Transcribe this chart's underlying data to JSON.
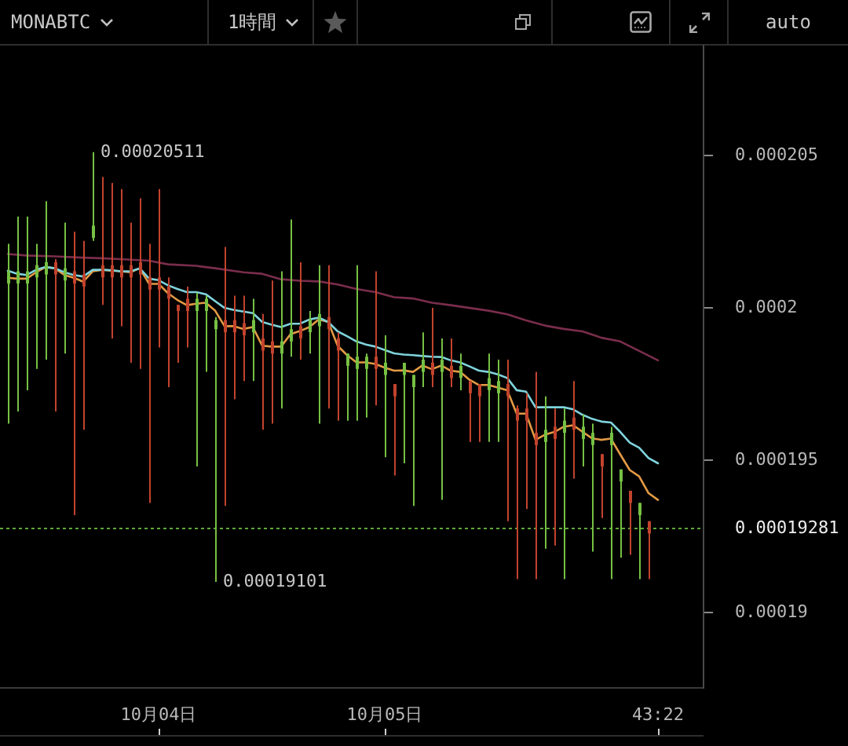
{
  "chart_data": {
    "type": "candlestick",
    "title": "MONABTC",
    "x": [
      "--10-03T08:00",
      "--10-03T09:00",
      "--10-03T10:00",
      "--10-03T11:00",
      "--10-03T12:00",
      "--10-03T13:00",
      "--10-03T14:00",
      "--10-03T15:00",
      "--10-03T16:00",
      "--10-03T17:00",
      "--10-03T18:00",
      "--10-03T19:00",
      "--10-03T20:00",
      "--10-03T21:00",
      "--10-03T22:00",
      "--10-03T23:00",
      "--10-04T00:00",
      "--10-04T01:00",
      "--10-04T02:00",
      "--10-04T03:00",
      "--10-04T04:00",
      "--10-04T05:00",
      "--10-04T06:00",
      "--10-04T07:00",
      "--10-04T08:00",
      "--10-04T09:00",
      "--10-04T10:00",
      "--10-04T11:00",
      "--10-04T12:00",
      "--10-04T13:00",
      "--10-04T14:00",
      "--10-04T15:00",
      "--10-04T16:00",
      "--10-04T17:00",
      "--10-04T18:00",
      "--10-04T19:00",
      "--10-04T20:00",
      "--10-04T21:00",
      "--10-04T22:00",
      "--10-04T23:00",
      "--10-05T00:00",
      "--10-05T01:00",
      "--10-05T02:00",
      "--10-05T03:00",
      "--10-05T04:00",
      "--10-05T05:00",
      "--10-05T06:00",
      "--10-05T07:00",
      "--10-05T08:00",
      "--10-05T09:00",
      "--10-05T10:00",
      "--10-05T11:00",
      "--10-05T12:00",
      "--10-05T13:00",
      "--10-05T14:00",
      "--10-05T15:00",
      "--10-05T16:00",
      "--10-05T17:00",
      "--10-05T18:00",
      "--10-05T19:00",
      "--10-05T20:00",
      "--10-05T21:00",
      "--10-05T22:00",
      "--10-05T23:00",
      "--10-06T00:00",
      "--10-06T01:00",
      "--10-06T02:00",
      "--10-06T03:00",
      "--10-06T04:00",
      "--10-06T05:00"
    ],
    "ohlc": [
      [
        0.0002008,
        0.0002021,
        0.0001962,
        0.0002012
      ],
      [
        0.0002008,
        0.000203,
        0.0001966,
        0.0002012
      ],
      [
        0.0002008,
        0.000203,
        0.0001973,
        0.0002012
      ],
      [
        0.000201,
        0.0002021,
        0.000198,
        0.0002014
      ],
      [
        0.0002011,
        0.0002035,
        0.0001983,
        0.0002015
      ],
      [
        0.0002015,
        0.0002016,
        0.0001966,
        0.0002011
      ],
      [
        0.0002009,
        0.0002028,
        0.0001985,
        0.0002013
      ],
      [
        0.0002012,
        0.0002025,
        0.0001932,
        0.0002008
      ],
      [
        0.0002011,
        0.0002022,
        0.000196,
        0.0002007
      ],
      [
        0.0002023,
        0.00020511,
        0.0002022,
        0.0002027
      ],
      [
        0.0002014,
        0.0002043,
        0.0002001,
        0.000201
      ],
      [
        0.0002014,
        0.0002041,
        0.000199,
        0.000201
      ],
      [
        0.0002014,
        0.0002039,
        0.0001994,
        0.000201
      ],
      [
        0.0002014,
        0.0002028,
        0.0001982,
        0.000201
      ],
      [
        0.0002015,
        0.0002036,
        0.000198,
        0.0002011
      ],
      [
        0.000201,
        0.0002021,
        0.0001936,
        0.0002006
      ],
      [
        0.000201,
        0.0002039,
        0.0001987,
        0.0002006
      ],
      [
        0.0002007,
        0.000201,
        0.0001974,
        0.0002003
      ],
      [
        0.0002001,
        0.0002001,
        0.0001982,
        0.0001999
      ],
      [
        0.0002003,
        0.0002007,
        0.0001987,
        0.0001999
      ],
      [
        0.0001999,
        0.0002005,
        0.0001948,
        0.0002003
      ],
      [
        0.0001999,
        0.0002004,
        0.0001979,
        0.0002003
      ],
      [
        0.0001993,
        0.0001997,
        0.00019101,
        0.0001996
      ],
      [
        0.0001996,
        0.000202,
        0.0001935,
        0.0001992
      ],
      [
        0.0001996,
        0.0002004,
        0.000197,
        0.0001992
      ],
      [
        0.0001995,
        0.0002004,
        0.0001976,
        0.0001991
      ],
      [
        0.0001992,
        0.0002003,
        0.0001976,
        0.0001996
      ],
      [
        0.000199,
        0.0001998,
        0.000196,
        0.0001986
      ],
      [
        0.0001989,
        0.0002009,
        0.0001962,
        0.0001985
      ],
      [
        0.0001985,
        0.0002012,
        0.0001967,
        0.0001989
      ],
      [
        0.0001989,
        0.0002029,
        0.0001984,
        0.0001993
      ],
      [
        0.0001994,
        0.0002015,
        0.0001983,
        0.000199
      ],
      [
        0.0001992,
        0.0001999,
        0.0001985,
        0.0001996
      ],
      [
        0.0001994,
        0.0002014,
        0.0001962,
        0.0001998
      ],
      [
        0.0001997,
        0.0002014,
        0.0001967,
        0.0001993
      ],
      [
        0.000199,
        0.0001992,
        0.0001963,
        0.0001986
      ],
      [
        0.0001981,
        0.0001985,
        0.0001963,
        0.0001985
      ],
      [
        0.000198,
        0.0002014,
        0.0001963,
        0.0001984
      ],
      [
        0.000198,
        0.0001985,
        0.0001964,
        0.0001984
      ],
      [
        0.0001984,
        0.0002012,
        0.0001968,
        0.000198
      ],
      [
        0.0001978,
        0.0001991,
        0.0001951,
        0.0001982
      ],
      [
        0.0001975,
        0.0001975,
        0.0001945,
        0.0001971
      ],
      [
        0.0001978,
        0.0001982,
        0.0001949,
        0.0001982
      ],
      [
        0.0001974,
        0.0001978,
        0.0001935,
        0.0001978
      ],
      [
        0.0001979,
        0.0001992,
        0.0001974,
        0.0001983
      ],
      [
        0.0001982,
        0.0002,
        0.0001974,
        0.0001978
      ],
      [
        0.0001979,
        0.000199,
        0.0001937,
        0.0001983
      ],
      [
        0.0001981,
        0.000199,
        0.0001974,
        0.0001977
      ],
      [
        0.0001977,
        0.0001985,
        0.0001973,
        0.0001981
      ],
      [
        0.0001976,
        0.0001976,
        0.0001956,
        0.0001972
      ],
      [
        0.0001975,
        0.0001975,
        0.0001956,
        0.0001971
      ],
      [
        0.0001973,
        0.0001985,
        0.0001956,
        0.0001977
      ],
      [
        0.0001972,
        0.0001983,
        0.0001956,
        0.0001976
      ],
      [
        0.0001975,
        0.0001983,
        0.000193,
        0.0001971
      ],
      [
        0.0001967,
        0.0001968,
        0.0001911,
        0.0001963
      ],
      [
        0.0001967,
        0.0001972,
        0.0001934,
        0.0001963
      ],
      [
        0.0001959,
        0.0001979,
        0.0001911,
        0.0001955
      ],
      [
        0.0001956,
        0.0001971,
        0.0001921,
        0.000196
      ],
      [
        0.0001961,
        0.0001967,
        0.0001922,
        0.0001957
      ],
      [
        0.0001959,
        0.0001967,
        0.0001911,
        0.0001963
      ],
      [
        0.0001964,
        0.0001976,
        0.0001944,
        0.000196
      ],
      [
        0.0001957,
        0.0001965,
        0.0001948,
        0.0001961
      ],
      [
        0.0001955,
        0.0001962,
        0.000192,
        0.0001959
      ],
      [
        0.0001952,
        0.0001952,
        0.0001931,
        0.0001948
      ],
      [
        0.0001955,
        0.0001961,
        0.0001911,
        0.0001959
      ],
      [
        0.0001943,
        0.0001947,
        0.0001918,
        0.0001947
      ],
      [
        0.000194,
        0.000194,
        0.0001919,
        0.0001936
      ],
      [
        0.0001932,
        0.0001936,
        0.0001911,
        0.0001936
      ],
      [
        0.000193,
        0.000193,
        0.0001911,
        0.0001926
      ],
      null
    ],
    "colors": [
      "#76c043",
      "#76c043",
      "#76c043",
      "#76c043",
      "#76c043",
      "#c2432d",
      "#76c043",
      "#c2432d",
      "#c2432d",
      "#76c043",
      "#c2432d",
      "#c2432d",
      "#c2432d",
      "#c2432d",
      "#c2432d",
      "#c2432d",
      "#c2432d",
      "#c2432d",
      "#c2432d",
      "#c2432d",
      "#76c043",
      "#76c043",
      "#76c043",
      "#c2432d",
      "#c2432d",
      "#c2432d",
      "#76c043",
      "#c2432d",
      "#c2432d",
      "#76c043",
      "#76c043",
      "#c2432d",
      "#76c043",
      "#76c043",
      "#c2432d",
      "#c2432d",
      "#76c043",
      "#76c043",
      "#76c043",
      "#c2432d",
      "#76c043",
      "#c2432d",
      "#76c043",
      "#76c043",
      "#76c043",
      "#c2432d",
      "#76c043",
      "#c2432d",
      "#76c043",
      "#c2432d",
      "#c2432d",
      "#76c043",
      "#76c043",
      "#c2432d",
      "#c2432d",
      "#c2432d",
      "#c2432d",
      "#76c043",
      "#c2432d",
      "#76c043",
      "#c2432d",
      "#76c043",
      "#76c043",
      "#c2432d",
      "#76c043",
      "#76c043",
      "#c2432d",
      "#76c043",
      "#c2432d",
      null
    ],
    "series": [
      {
        "type": "line",
        "color": "#7fd3dc",
        "values": [
          0.00020122,
          0.00020112,
          0.00020108,
          0.00020125,
          0.00020134,
          0.0002013,
          0.00020117,
          0.00020108,
          0.00020103,
          0.00020125,
          0.00020125,
          0.00020124,
          0.0002012,
          0.0002012,
          0.0002013,
          0.00020096,
          0.00020091,
          0.00020074,
          0.00020062,
          0.00020052,
          0.00020052,
          0.00020045,
          0.00020022,
          0.0002,
          0.00019993,
          0.00019988,
          0.00019983,
          0.00019954,
          0.00019945,
          0.00019937,
          0.00019948,
          0.00019948,
          0.00019962,
          0.00019968,
          0.00019954,
          0.00019923,
          0.00019907,
          0.0001989,
          0.0001988,
          0.00019873,
          0.00019862,
          0.00019851,
          0.00019847,
          0.00019845,
          0.00019842,
          0.0001984,
          0.00019839,
          0.00019828,
          0.00019821,
          0.00019808,
          0.00019794,
          0.0001979,
          0.00019782,
          0.0001977,
          0.0001973,
          0.00019725,
          0.00019674,
          0.00019674,
          0.00019674,
          0.00019674,
          0.00019667,
          0.00019649,
          0.00019636,
          0.00019627,
          0.00019624,
          0.00019593,
          0.00019558,
          0.00019541,
          0.00019507,
          0.0001949
        ]
      },
      {
        "type": "line",
        "color": "#e39a45",
        "values": [
          0.00020099,
          0.00020096,
          0.00020096,
          0.00020117,
          0.00020134,
          0.0002013,
          0.00020108,
          0.00020099,
          0.00020086,
          0.0002012,
          0.00020125,
          0.00020122,
          0.0002012,
          0.00020117,
          0.0002013,
          0.00020079,
          0.00020079,
          0.00020048,
          0.00020026,
          0.00020009,
          0.00020014,
          0.00020017,
          0.00019991,
          0.0001994,
          0.0001994,
          0.00019931,
          0.00019937,
          0.00019876,
          0.00019873,
          0.00019873,
          0.00019914,
          0.00019924,
          0.00019937,
          0.00019962,
          0.00019954,
          0.00019876,
          0.00019845,
          0.00019821,
          0.00019821,
          0.00019816,
          0.00019804,
          0.00019794,
          0.00019795,
          0.0001979,
          0.00019811,
          0.00019799,
          0.00019811,
          0.00019794,
          0.0001979,
          0.00019764,
          0.00019747,
          0.00019747,
          0.00019739,
          0.0001973,
          0.00019653,
          0.00019653,
          0.00019567,
          0.00019584,
          0.00019593,
          0.0001961,
          0.00019615,
          0.00019593,
          0.00019572,
          0.00019567,
          0.00019571,
          0.00019519,
          0.00019468,
          0.00019447,
          0.00019392,
          0.0001937
        ]
      },
      {
        "type": "line",
        "color": "#7a2d4b",
        "x": [
          "--10-03T08:00",
          "--10-03T10:00",
          "--10-03T13:00",
          "--10-03T16:00",
          "--10-03T18:00",
          "--10-03T20:00",
          "--10-03T23:00",
          "--10-04T01:00",
          "--10-04T04:00",
          "--10-04T06:00",
          "--10-04T09:00",
          "--10-04T11:00",
          "--10-04T13:00",
          "--10-04T15:00",
          "--10-04T17:00",
          "--10-04T19:00",
          "--10-04T21:00",
          "--10-04T23:00",
          "--10-05T01:00",
          "--10-05T03:00",
          "--10-05T05:00",
          "--10-05T07:00",
          "--10-05T09:00",
          "--10-05T11:00",
          "--10-05T13:00",
          "--10-05T15:00",
          "--10-05T17:00",
          "--10-05T19:00",
          "--10-05T21:00",
          "--10-05T23:00",
          "--10-06T01:00",
          "--10-06T03:00",
          "--10-06T05:00"
        ],
        "values": [
          0.00020177,
          0.00020172,
          0.00020169,
          0.00020165,
          0.00020163,
          0.0002016,
          0.00020155,
          0.00020143,
          0.00020138,
          0.0002013,
          0.00020117,
          0.00020112,
          0.00020094,
          0.00020089,
          0.00020087,
          0.00020077,
          0.00020062,
          0.00020052,
          0.00020035,
          0.00020031,
          0.00020017,
          0.00020009,
          0.0002,
          0.00019991,
          0.00019979,
          0.00019959,
          0.00019942,
          0.00019931,
          0.00019923,
          0.00019902,
          0.0001989,
          0.00019859,
          0.00019828
        ]
      }
    ],
    "xlim": [
      "--10-03T07:10",
      "--10-06T09:50"
    ],
    "xticks": [
      {
        "value": "--10-04",
        "label": "10月04日"
      },
      {
        "value": "--10-05",
        "label": "10月05日"
      },
      {
        "value": "--10-06T05:00",
        "label": "43:22"
      }
    ],
    "ylim": [
      0.00018753,
      0.00020861
    ],
    "yticks": [
      0.00019,
      0.000195,
      0.0002,
      0.000205
    ],
    "ref_lines": [
      {
        "axis": "y",
        "value": 0.00019281,
        "label": "0.00019281",
        "color": "#5fa83a",
        "line_style": "dotted"
      }
    ],
    "annotations": [
      {
        "text": "0.00020511",
        "x": "--10-03T17:00",
        "y": 0.00020511
      },
      {
        "text": "0.00019101",
        "x": "--10-04T06:00",
        "y": 0.00019101
      },
      "1時間",
      "auto"
    ]
  }
}
